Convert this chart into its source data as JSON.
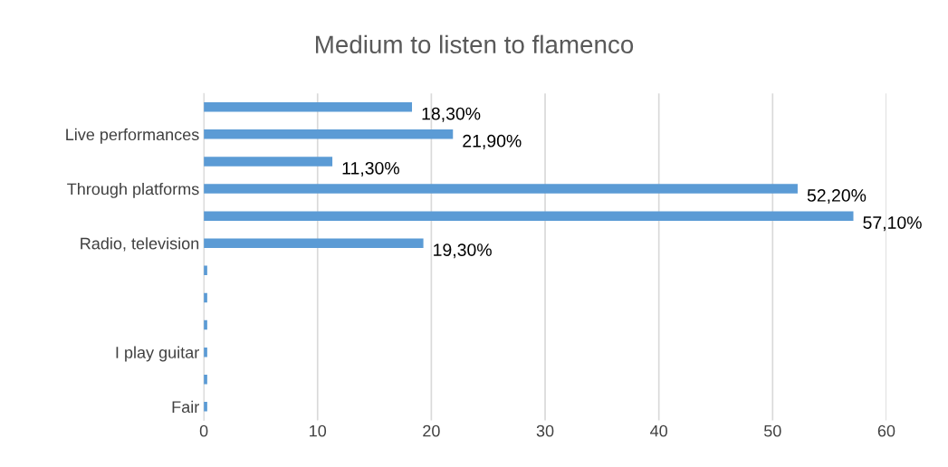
{
  "chart_data": {
    "type": "bar",
    "orientation": "horizontal",
    "title": "Medium to listen to flamenco",
    "categories": [
      null,
      "Live performances",
      null,
      "Through platforms",
      null,
      "Radio, television",
      null,
      null,
      null,
      "I play guitar",
      null,
      "Fair"
    ],
    "values": [
      18.3,
      21.9,
      11.3,
      52.2,
      57.1,
      19.3,
      0.3,
      0.3,
      0.3,
      0.3,
      0.3,
      0.3
    ],
    "value_labels": [
      "18,30%",
      "21,90%",
      "11,30%",
      "52,20%",
      "57,10%",
      "19,30%",
      null,
      null,
      null,
      null,
      null,
      null
    ],
    "color": "#5b9bd5",
    "xlim": [
      0,
      60
    ],
    "xticks": [
      0,
      10,
      20,
      30,
      40,
      50,
      60
    ],
    "grid": "x"
  }
}
